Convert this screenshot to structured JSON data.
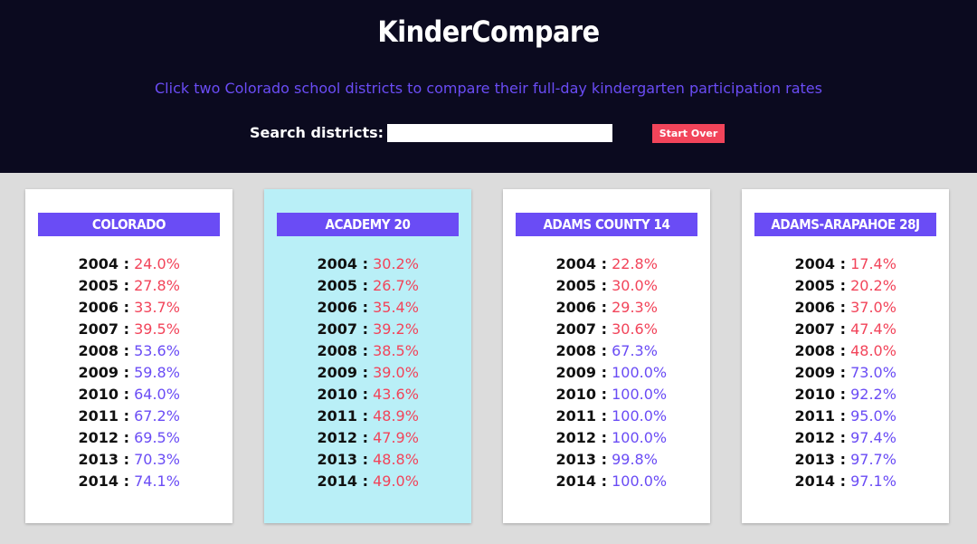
{
  "app": {
    "title": "KinderCompare",
    "subtitle": "Click two Colorado school districts to compare their full-day kindergarten participation rates"
  },
  "search": {
    "label": "Search districts:",
    "value": "",
    "placeholder": ""
  },
  "controls": {
    "start_over_label": "Start Over"
  },
  "colors": {
    "header_bg": "#0b0a1f",
    "accent_purple": "#6a4cf5",
    "accent_red": "#f2445a",
    "selected_card_bg": "#b9eff7",
    "page_bg": "#dcdcdc"
  },
  "districts": [
    {
      "name": "COLORADO",
      "selected": false,
      "rates": [
        {
          "year": "2004 :",
          "value": "24.0%"
        },
        {
          "year": "2005 :",
          "value": "27.8%"
        },
        {
          "year": "2006 :",
          "value": "33.7%"
        },
        {
          "year": "2007 :",
          "value": "39.5%"
        },
        {
          "year": "2008 :",
          "value": "53.6%"
        },
        {
          "year": "2009 :",
          "value": "59.8%"
        },
        {
          "year": "2010 :",
          "value": "64.0%"
        },
        {
          "year": "2011 :",
          "value": "67.2%"
        },
        {
          "year": "2012 :",
          "value": "69.5%"
        },
        {
          "year": "2013 :",
          "value": "70.3%"
        },
        {
          "year": "2014 :",
          "value": "74.1%"
        }
      ]
    },
    {
      "name": "ACADEMY 20",
      "selected": true,
      "rates": [
        {
          "year": "2004 :",
          "value": "30.2%"
        },
        {
          "year": "2005 :",
          "value": "26.7%"
        },
        {
          "year": "2006 :",
          "value": "35.4%"
        },
        {
          "year": "2007 :",
          "value": "39.2%"
        },
        {
          "year": "2008 :",
          "value": "38.5%"
        },
        {
          "year": "2009 :",
          "value": "39.0%"
        },
        {
          "year": "2010 :",
          "value": "43.6%"
        },
        {
          "year": "2011 :",
          "value": "48.9%"
        },
        {
          "year": "2012 :",
          "value": "47.9%"
        },
        {
          "year": "2013 :",
          "value": "48.8%"
        },
        {
          "year": "2014 :",
          "value": "49.0%"
        }
      ]
    },
    {
      "name": "ADAMS COUNTY 14",
      "selected": false,
      "rates": [
        {
          "year": "2004 :",
          "value": "22.8%"
        },
        {
          "year": "2005 :",
          "value": "30.0%"
        },
        {
          "year": "2006 :",
          "value": "29.3%"
        },
        {
          "year": "2007 :",
          "value": "30.6%"
        },
        {
          "year": "2008 :",
          "value": "67.3%"
        },
        {
          "year": "2009 :",
          "value": "100.0%"
        },
        {
          "year": "2010 :",
          "value": "100.0%"
        },
        {
          "year": "2011 :",
          "value": "100.0%"
        },
        {
          "year": "2012 :",
          "value": "100.0%"
        },
        {
          "year": "2013 :",
          "value": "99.8%"
        },
        {
          "year": "2014 :",
          "value": "100.0%"
        }
      ]
    },
    {
      "name": "ADAMS-ARAPAHOE 28J",
      "selected": false,
      "rates": [
        {
          "year": "2004 :",
          "value": "17.4%"
        },
        {
          "year": "2005 :",
          "value": "20.2%"
        },
        {
          "year": "2006 :",
          "value": "37.0%"
        },
        {
          "year": "2007 :",
          "value": "47.4%"
        },
        {
          "year": "2008 :",
          "value": "48.0%"
        },
        {
          "year": "2009 :",
          "value": "73.0%"
        },
        {
          "year": "2010 :",
          "value": "92.2%"
        },
        {
          "year": "2011 :",
          "value": "95.0%"
        },
        {
          "year": "2012 :",
          "value": "97.4%"
        },
        {
          "year": "2013 :",
          "value": "97.7%"
        },
        {
          "year": "2014 :",
          "value": "97.1%"
        }
      ]
    }
  ]
}
